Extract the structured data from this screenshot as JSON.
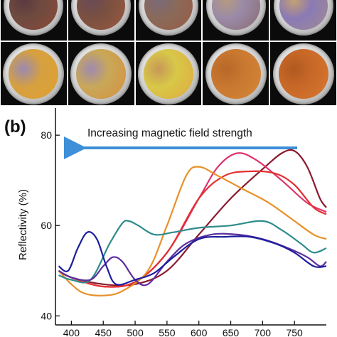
{
  "figure": {
    "panel_b_label": "(b)",
    "photo_panel_label": "",
    "annotation": "Increasing magnetic field strength",
    "colors": {
      "arrow": "#3d8fd8"
    }
  },
  "photos": {
    "rows": [
      [
        {
          "c1": "#6f4a3f",
          "c2": "#8a4a3a",
          "c3": "#5a3a40"
        },
        {
          "c1": "#7a5040",
          "c2": "#9a5a40",
          "c3": "#6a4a55"
        },
        {
          "c1": "#8a6a5a",
          "c2": "#9a5a45",
          "c3": "#7a6a78"
        },
        {
          "c1": "#9a8aa8",
          "c2": "#8a6a70",
          "c3": "#b59a80"
        },
        {
          "c1": "#8a7ab5",
          "c2": "#a08a90",
          "c3": "#c4a070"
        }
      ],
      [
        {
          "c1": "#d6a040",
          "c2": "#e0a030",
          "c3": "#9a8ab0"
        },
        {
          "c1": "#c8a858",
          "c2": "#d69040",
          "c3": "#a08ab0"
        },
        {
          "c1": "#d8c848",
          "c2": "#e0a840",
          "c3": "#c89858"
        },
        {
          "c1": "#c87830",
          "c2": "#d88838",
          "c3": "#b86828"
        },
        {
          "c1": "#c86828",
          "c2": "#d87830",
          "c3": "#b05a20"
        }
      ]
    ]
  },
  "chart_data": {
    "type": "line",
    "title": "",
    "xlabel": "",
    "ylabel": "Reflectivity (%)",
    "xlim": [
      375,
      800
    ],
    "ylim": [
      38,
      86
    ],
    "x_ticks": [
      400,
      450,
      500,
      550,
      600,
      650,
      700,
      750
    ],
    "y_ticks": [
      40,
      60,
      80
    ],
    "series": [
      {
        "color": "#8b1a2e",
        "points": [
          [
            380,
            50
          ],
          [
            400,
            48.5
          ],
          [
            450,
            47
          ],
          [
            500,
            47
          ],
          [
            550,
            50
          ],
          [
            600,
            58
          ],
          [
            650,
            66
          ],
          [
            700,
            72.5
          ],
          [
            730,
            76
          ],
          [
            750,
            76.5
          ],
          [
            770,
            73
          ],
          [
            790,
            66
          ],
          [
            800,
            64
          ]
        ]
      },
      {
        "color": "#e0336e",
        "points": [
          [
            380,
            50
          ],
          [
            400,
            48.5
          ],
          [
            450,
            46.5
          ],
          [
            500,
            47.5
          ],
          [
            550,
            54
          ],
          [
            600,
            66
          ],
          [
            630,
            73
          ],
          [
            660,
            76
          ],
          [
            690,
            74.5
          ],
          [
            730,
            70
          ],
          [
            770,
            65
          ],
          [
            800,
            63
          ]
        ]
      },
      {
        "color": "#e33030",
        "points": [
          [
            380,
            50
          ],
          [
            400,
            48.5
          ],
          [
            450,
            46.5
          ],
          [
            500,
            47.5
          ],
          [
            550,
            54
          ],
          [
            600,
            66
          ],
          [
            640,
            71
          ],
          [
            680,
            72
          ],
          [
            720,
            71.5
          ],
          [
            750,
            69
          ],
          [
            780,
            64
          ],
          [
            800,
            62.5
          ]
        ]
      },
      {
        "color": "#e8902a",
        "points": [
          [
            380,
            50
          ],
          [
            400,
            47
          ],
          [
            420,
            45
          ],
          [
            450,
            44.5
          ],
          [
            480,
            45.5
          ],
          [
            520,
            50
          ],
          [
            550,
            60
          ],
          [
            580,
            71
          ],
          [
            600,
            73
          ],
          [
            630,
            71
          ],
          [
            670,
            68
          ],
          [
            710,
            65
          ],
          [
            750,
            61
          ],
          [
            780,
            58
          ],
          [
            800,
            57
          ]
        ]
      },
      {
        "color": "#2e8b8b",
        "points": [
          [
            380,
            49
          ],
          [
            400,
            48
          ],
          [
            430,
            48
          ],
          [
            460,
            56
          ],
          [
            480,
            60.5
          ],
          [
            490,
            61
          ],
          [
            505,
            60
          ],
          [
            530,
            58
          ],
          [
            560,
            58.5
          ],
          [
            600,
            59.5
          ],
          [
            650,
            60
          ],
          [
            700,
            61
          ],
          [
            730,
            59
          ],
          [
            760,
            56
          ],
          [
            780,
            54
          ],
          [
            800,
            55
          ]
        ]
      },
      {
        "color": "#5b2d9e",
        "points": [
          [
            380,
            50
          ],
          [
            400,
            48.5
          ],
          [
            430,
            48
          ],
          [
            450,
            51
          ],
          [
            465,
            53
          ],
          [
            480,
            52
          ],
          [
            500,
            48
          ],
          [
            520,
            47
          ],
          [
            550,
            52
          ],
          [
            580,
            56
          ],
          [
            620,
            58
          ],
          [
            660,
            58
          ],
          [
            700,
            57
          ],
          [
            740,
            55
          ],
          [
            770,
            53
          ],
          [
            790,
            51
          ],
          [
            800,
            52
          ]
        ]
      },
      {
        "color": "#1e1e9e",
        "points": [
          [
            380,
            51
          ],
          [
            395,
            50
          ],
          [
            410,
            55
          ],
          [
            425,
            58.5
          ],
          [
            440,
            57
          ],
          [
            455,
            51
          ],
          [
            470,
            47
          ],
          [
            500,
            48
          ],
          [
            530,
            49.5
          ],
          [
            560,
            53
          ],
          [
            600,
            57
          ],
          [
            640,
            57.5
          ],
          [
            680,
            57.5
          ],
          [
            720,
            56
          ],
          [
            750,
            54
          ],
          [
            780,
            51
          ],
          [
            800,
            51
          ]
        ]
      }
    ]
  }
}
